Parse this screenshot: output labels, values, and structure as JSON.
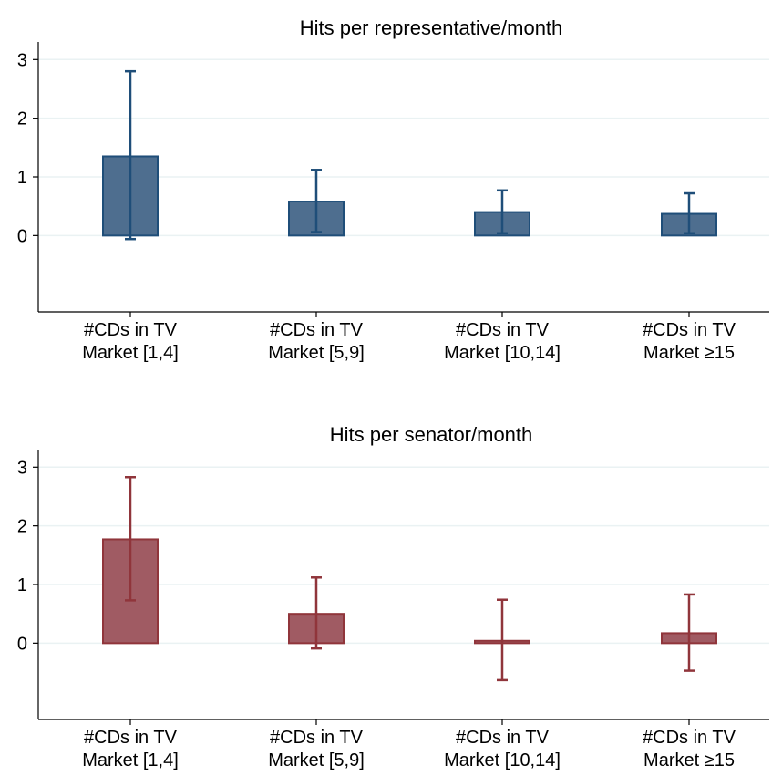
{
  "chart_data": [
    {
      "type": "bar",
      "title": "Hits per representative/month",
      "categories": [
        [
          "#CDs in TV",
          "Market [1,4]"
        ],
        [
          "#CDs in TV",
          "Market [5,9]"
        ],
        [
          "#CDs in TV",
          "Market [10,14]"
        ],
        [
          "#CDs in TV",
          "Market ≥15"
        ]
      ],
      "series": [
        {
          "values": [
            1.35,
            0.58,
            0.4,
            0.37
          ],
          "ci_low": [
            -0.06,
            0.06,
            0.04,
            0.04
          ],
          "ci_high": [
            2.8,
            1.12,
            0.77,
            0.72
          ]
        }
      ],
      "xlabel": "",
      "ylabel": "",
      "yticks": [
        0,
        1,
        2,
        3
      ],
      "ylim": [
        -1.3,
        3.3
      ],
      "grid": true,
      "colors": {
        "fill": "#4e6e8f",
        "stroke": "#1f4e79"
      }
    },
    {
      "type": "bar",
      "title": "Hits per senator/month",
      "categories": [
        [
          "#CDs in TV",
          "Market [1,4]"
        ],
        [
          "#CDs in TV",
          "Market [5,9]"
        ],
        [
          "#CDs in TV",
          "Market [10,14]"
        ],
        [
          "#CDs in TV",
          "Market ≥15"
        ]
      ],
      "series": [
        {
          "values": [
            1.77,
            0.5,
            0.04,
            0.17
          ],
          "ci_low": [
            0.73,
            -0.09,
            -0.63,
            -0.47
          ],
          "ci_high": [
            2.83,
            1.12,
            0.74,
            0.83
          ]
        }
      ],
      "xlabel": "",
      "ylabel": "",
      "yticks": [
        0,
        1,
        2,
        3
      ],
      "ylim": [
        -1.3,
        3.3
      ],
      "grid": true,
      "colors": {
        "fill": "#a05b63",
        "stroke": "#90353b"
      }
    }
  ]
}
